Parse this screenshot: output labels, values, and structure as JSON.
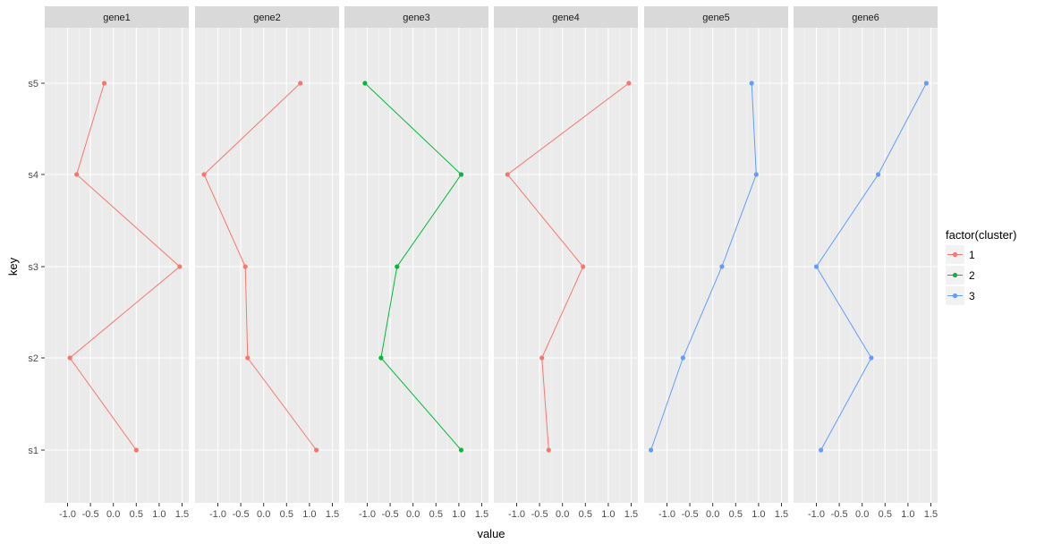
{
  "chart_data": {
    "type": "line",
    "facet_by": "gene",
    "panels": [
      {
        "name": "gene1",
        "cluster": "1",
        "values": [
          0.5,
          -0.95,
          1.45,
          -0.8,
          -0.2
        ]
      },
      {
        "name": "gene2",
        "cluster": "1",
        "values": [
          1.15,
          -0.35,
          -0.4,
          -1.3,
          0.8
        ]
      },
      {
        "name": "gene3",
        "cluster": "2",
        "values": [
          1.05,
          -0.7,
          -0.35,
          1.05,
          -1.05
        ]
      },
      {
        "name": "gene4",
        "cluster": "1",
        "values": [
          -0.3,
          -0.45,
          0.45,
          -1.2,
          1.45
        ]
      },
      {
        "name": "gene5",
        "cluster": "3",
        "values": [
          -1.35,
          -0.65,
          0.2,
          0.95,
          0.85
        ]
      },
      {
        "name": "gene6",
        "cluster": "3",
        "values": [
          -0.9,
          0.2,
          -1.0,
          0.35,
          1.4
        ]
      }
    ],
    "y_categories": [
      "s1",
      "s2",
      "s3",
      "s4",
      "s5"
    ],
    "xlabel": "value",
    "ylabel": "key",
    "xlim": [
      -1.5,
      1.6
    ],
    "x_ticks": [
      -1.0,
      -0.5,
      0.0,
      0.5,
      1.0,
      1.5
    ],
    "x_tick_labels": [
      "-1.0",
      "-0.5",
      "0.0",
      "0.5",
      "1.0",
      "1.5"
    ],
    "legend": {
      "title": "factor(cluster)",
      "position": "right",
      "entries": [
        {
          "label": "1",
          "color": "#F8766D"
        },
        {
          "label": "2",
          "color": "#00BA38"
        },
        {
          "label": "3",
          "color": "#619CFF"
        }
      ]
    },
    "grid": true,
    "panel_background": "#EBEBEB",
    "strip_background": "#D9D9D9"
  }
}
